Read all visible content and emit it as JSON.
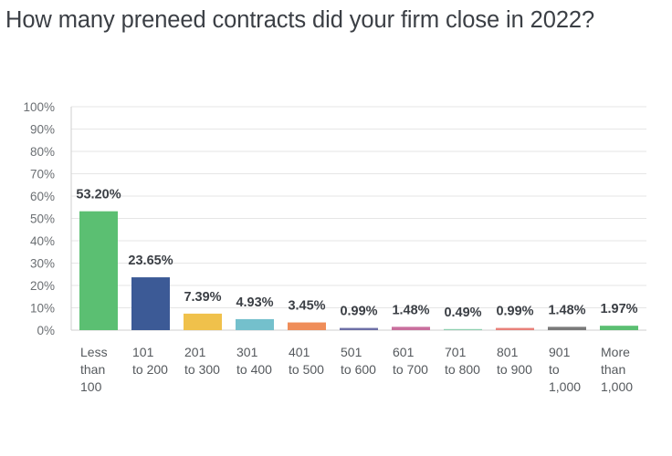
{
  "chart_data": {
    "type": "bar",
    "title": "How many preneed contracts did your firm close in 2022?",
    "xlabel": "",
    "ylabel": "",
    "categories": [
      [
        "Less",
        "than",
        "100"
      ],
      [
        "101",
        "to 200"
      ],
      [
        "201",
        "to 300"
      ],
      [
        "301",
        "to 400"
      ],
      [
        "401",
        "to 500"
      ],
      [
        "501",
        "to 600"
      ],
      [
        "601",
        "to 700"
      ],
      [
        "701",
        "to 800"
      ],
      [
        "801",
        "to 900"
      ],
      [
        "901",
        "to",
        "1,000"
      ],
      [
        "More",
        "than",
        "1,000"
      ]
    ],
    "values": [
      53.2,
      23.65,
      7.39,
      4.93,
      3.45,
      0.99,
      1.48,
      0.49,
      0.99,
      1.48,
      1.97
    ],
    "value_labels": [
      "53.20%",
      "23.65%",
      "7.39%",
      "4.93%",
      "3.45%",
      "0.99%",
      "1.48%",
      "0.49%",
      "0.99%",
      "1.48%",
      "1.97%"
    ],
    "colors": [
      "#5bbf72",
      "#3c5a96",
      "#f0c14b",
      "#74c0cc",
      "#ef8d59",
      "#6d6fa6",
      "#c96f9d",
      "#8ed0b0",
      "#e8817a",
      "#7a7a7a",
      "#5bbf72"
    ],
    "ylim": [
      0,
      100
    ],
    "yticks": [
      "0%",
      "10%",
      "20%",
      "30%",
      "40%",
      "50%",
      "60%",
      "70%",
      "80%",
      "90%",
      "100%"
    ],
    "grid": true,
    "legend": "none"
  }
}
